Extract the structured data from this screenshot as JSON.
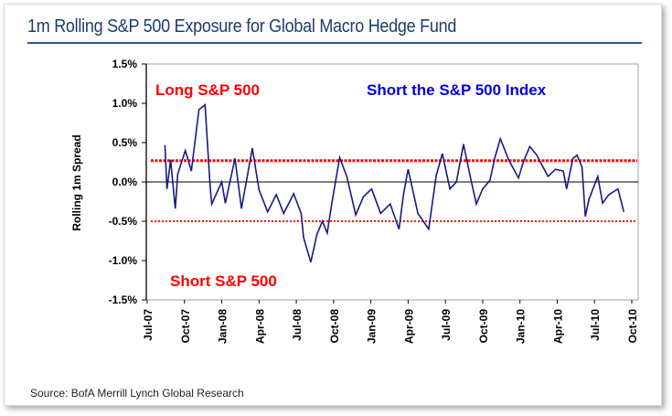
{
  "title": "1m Rolling S&P 500 Exposure for Global Macro Hedge Fund",
  "source": "Source: BofA Merrill Lynch Global Research",
  "chart_data": {
    "type": "line",
    "title": "1m Rolling S&P 500 Exposure for Global Macro Hedge Fund",
    "ylabel": "Rolling 1m Spread",
    "xlabel": "",
    "ylim": [
      -1.5,
      1.5
    ],
    "yticks": [
      "1.5%",
      "1.0%",
      "0.5%",
      "0.0%",
      "-0.5%",
      "-1.0%",
      "-1.5%"
    ],
    "ytick_values": [
      1.5,
      1.0,
      0.5,
      0.0,
      -0.5,
      -1.0,
      -1.5
    ],
    "xlim": [
      "2007-07-01",
      "2010-10-01"
    ],
    "xticks": [
      "Jul-07",
      "Oct-07",
      "Jan-08",
      "Apr-08",
      "Jul-08",
      "Oct-08",
      "Jan-09",
      "Apr-09",
      "Jul-09",
      "Oct-09",
      "Jan-10",
      "Apr-10",
      "Jul-10",
      "Oct-10"
    ],
    "grid": false,
    "line_color": "#1a1a80",
    "threshold_color": "#ff0000",
    "thresholds": [
      0.27,
      -0.5
    ],
    "annotations": [
      {
        "text": "Long S&P 500",
        "color": "#ff0000"
      },
      {
        "text": "Short the S&P 500 Index",
        "color": "#0000e0"
      },
      {
        "text": "Short S&P 500",
        "color": "#ff0000"
      }
    ],
    "series": [
      {
        "x": [
          "2007-08-14",
          "2007-08-19",
          "2007-08-28",
          "2007-09-09",
          "2007-09-15",
          "2007-10-03",
          "2007-10-18",
          "2007-11-06",
          "2007-11-21",
          "2007-12-03",
          "2007-12-07",
          "2008-01-01",
          "2008-01-10",
          "2008-02-03",
          "2008-02-19",
          "2008-03-15",
          "2008-04-01",
          "2008-04-22",
          "2008-05-13",
          "2008-05-31",
          "2008-06-25",
          "2008-07-13",
          "2008-07-19",
          "2008-08-06",
          "2008-08-21",
          "2008-09-04",
          "2008-09-16",
          "2008-09-27",
          "2008-10-16",
          "2008-11-03",
          "2008-11-25",
          "2008-12-13",
          "2009-01-03",
          "2009-01-25",
          "2009-02-18",
          "2009-03-09",
          "2009-03-20",
          "2009-04-01",
          "2009-04-25",
          "2009-05-21",
          "2009-06-09",
          "2009-06-24",
          "2009-07-12",
          "2009-07-28",
          "2009-08-15",
          "2009-09-01",
          "2009-09-16",
          "2009-10-01",
          "2009-10-19",
          "2009-10-31",
          "2009-11-14",
          "2009-12-04",
          "2009-12-28",
          "2010-01-09",
          "2010-01-25",
          "2010-02-12",
          "2010-02-24",
          "2010-03-09",
          "2010-03-27",
          "2010-04-16",
          "2010-04-24",
          "2010-05-09",
          "2010-05-19",
          "2010-06-01",
          "2010-06-09",
          "2010-06-18",
          "2010-07-09",
          "2010-07-21",
          "2010-08-06",
          "2010-08-28",
          "2010-09-12"
        ],
        "values": [
          0.47,
          -0.09,
          0.28,
          -0.34,
          0.1,
          0.4,
          0.14,
          0.92,
          0.98,
          -0.05,
          -0.28,
          0.0,
          -0.27,
          0.3,
          -0.34,
          0.43,
          -0.1,
          -0.38,
          -0.16,
          -0.4,
          -0.15,
          -0.4,
          -0.71,
          -1.02,
          -0.67,
          -0.5,
          -0.65,
          -0.28,
          0.31,
          0.07,
          -0.42,
          -0.19,
          -0.09,
          -0.4,
          -0.28,
          -0.6,
          -0.16,
          0.16,
          -0.4,
          -0.6,
          0.08,
          0.36,
          -0.09,
          0.0,
          0.48,
          0.07,
          -0.28,
          -0.09,
          0.02,
          0.31,
          0.55,
          0.28,
          0.05,
          0.25,
          0.45,
          0.34,
          0.22,
          0.07,
          0.16,
          0.14,
          -0.09,
          0.3,
          0.34,
          0.19,
          -0.44,
          -0.22,
          0.07,
          -0.27,
          -0.16,
          -0.09,
          -0.38
        ]
      }
    ]
  }
}
